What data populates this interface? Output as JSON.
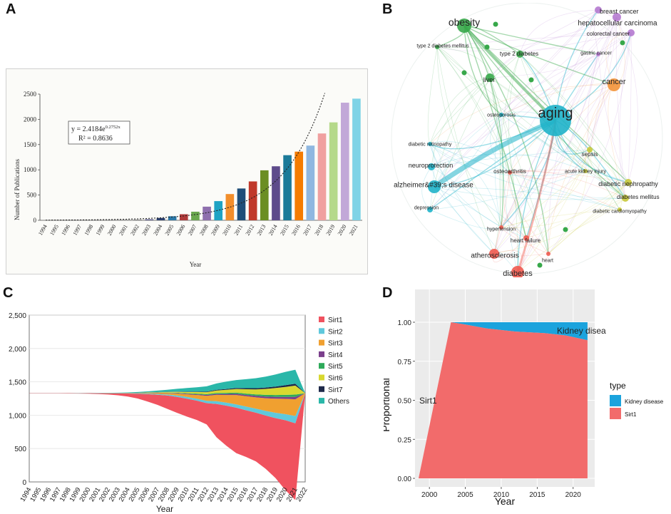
{
  "panels": {
    "a": "A",
    "b": "B",
    "c": "C",
    "d": "D"
  },
  "chart_data": [
    {
      "type": "bar",
      "panel": "A",
      "categories": [
        "1994",
        "1995",
        "1996",
        "1997",
        "1998",
        "1999",
        "2000",
        "2001",
        "2002",
        "2003",
        "2004",
        "2005",
        "2006",
        "2007",
        "2008",
        "2009",
        "2010",
        "2011",
        "2012",
        "2013",
        "2014",
        "2015",
        "2016",
        "2017",
        "2018",
        "2019",
        "2020",
        "2021"
      ],
      "values": [
        2,
        3,
        3,
        4,
        5,
        6,
        8,
        10,
        14,
        20,
        45,
        80,
        120,
        170,
        270,
        380,
        520,
        630,
        770,
        990,
        1070,
        1290,
        1360,
        1480,
        1720,
        1940,
        2330,
        2410
      ],
      "colors": [
        "#888888",
        "#888888",
        "#888888",
        "#888888",
        "#888888",
        "#888888",
        "#888888",
        "#888888",
        "#888888",
        "#5a5a8a",
        "#2a3f6e",
        "#2b78a8",
        "#b03a3a",
        "#6aa84f",
        "#8e6fae",
        "#1fa3c4",
        "#f28e2b",
        "#1f4e79",
        "#c0392b",
        "#6b8e23",
        "#5e4b8b",
        "#1b7a99",
        "#f57c00",
        "#8fb7e0",
        "#f0a0a0",
        "#b5d98a",
        "#c2a8d8",
        "#7fd3e6"
      ],
      "ylabel": "Number of Publications",
      "xlabel": "Year",
      "ylim": [
        0,
        2500
      ],
      "yticks": [
        "0",
        "500",
        "1000",
        "1500",
        "2000",
        "2500"
      ],
      "equation": "y = 2.4184e",
      "exponent": "0.2752x",
      "r2": "R² = 0.8636"
    },
    {
      "type": "network",
      "panel": "B",
      "nodes": [
        {
          "label": "aging",
          "cluster": "blue"
        },
        {
          "label": "obesity",
          "cluster": "green"
        },
        {
          "label": "cancer",
          "cluster": "orange"
        },
        {
          "label": "breast cancer",
          "cluster": "purple"
        },
        {
          "label": "hepatocellular carcinoma",
          "cluster": "purple"
        },
        {
          "label": "colorectal cancer",
          "cluster": "purple"
        },
        {
          "label": "gastric cancer",
          "cluster": "purple"
        },
        {
          "label": "type 2 diabetes mellitus",
          "cluster": "green"
        },
        {
          "label": "type 2 diabetes",
          "cluster": "green"
        },
        {
          "label": "liver",
          "cluster": "green"
        },
        {
          "label": "osteoporosis",
          "cluster": "blue"
        },
        {
          "label": "diabetic retinopathy",
          "cluster": "blue"
        },
        {
          "label": "neuroprotection",
          "cluster": "blue"
        },
        {
          "label": "alzheimer&#39;s disease",
          "cluster": "blue"
        },
        {
          "label": "depression",
          "cluster": "blue"
        },
        {
          "label": "osteoarthritis",
          "cluster": "red"
        },
        {
          "label": "sepsis",
          "cluster": "yellow"
        },
        {
          "label": "acute kidney injury",
          "cluster": "yellow"
        },
        {
          "label": "diabetic nephropathy",
          "cluster": "yellow"
        },
        {
          "label": "diabetes mellitus",
          "cluster": "yellow"
        },
        {
          "label": "diabetic cardiomyopathy",
          "cluster": "yellow"
        },
        {
          "label": "hypertension",
          "cluster": "red"
        },
        {
          "label": "heart failure",
          "cluster": "red"
        },
        {
          "label": "heart",
          "cluster": "red"
        },
        {
          "label": "atherosclerosis",
          "cluster": "red"
        },
        {
          "label": "diabetes",
          "cluster": "red"
        }
      ]
    },
    {
      "type": "area",
      "panel": "C",
      "xlabel": "Year",
      "x": [
        "1994",
        "1995",
        "1996",
        "1997",
        "1998",
        "1999",
        "2000",
        "2001",
        "2002",
        "2003",
        "2004",
        "2005",
        "2006",
        "2007",
        "2008",
        "2009",
        "2010",
        "2011",
        "2012",
        "2013",
        "2014",
        "2015",
        "2016",
        "2017",
        "2018",
        "2019",
        "2020",
        "2021",
        "2022"
      ],
      "ylim": [
        0,
        2500
      ],
      "yticks": [
        "0",
        "500",
        "1,000",
        "1,500",
        "2,000",
        "2,500"
      ],
      "legend": [
        "Sirt1",
        "Sirt2",
        "Sirt3",
        "Sirt4",
        "Sirt5",
        "Sirt6",
        "Sirt7",
        "Others"
      ],
      "colors": [
        "#f0525f",
        "#5fc8dc",
        "#f0a030",
        "#7b3f8c",
        "#2eaa5a",
        "#d8d830",
        "#1f2a4a",
        "#2ab7a9"
      ],
      "series": [
        {
          "name": "Sirt1",
          "values": [
            4,
            4,
            4,
            4,
            5,
            6,
            8,
            12,
            18,
            28,
            45,
            70,
            110,
            150,
            200,
            240,
            270,
            290,
            320,
            500,
            600,
            680,
            700,
            730,
            800,
            900,
            1050,
            1150,
            0
          ]
        },
        {
          "name": "Sirt2",
          "values": [
            0,
            0,
            0,
            0,
            0,
            0,
            0,
            1,
            1,
            2,
            3,
            5,
            8,
            12,
            15,
            20,
            25,
            30,
            35,
            40,
            45,
            50,
            55,
            60,
            70,
            80,
            90,
            110,
            0
          ]
        },
        {
          "name": "Sirt3",
          "values": [
            0,
            0,
            0,
            0,
            0,
            0,
            0,
            0,
            1,
            1,
            2,
            4,
            8,
            14,
            20,
            30,
            40,
            55,
            75,
            95,
            115,
            140,
            155,
            170,
            190,
            210,
            230,
            250,
            0
          ]
        },
        {
          "name": "Sirt4",
          "values": [
            0,
            0,
            0,
            0,
            0,
            0,
            0,
            0,
            0,
            1,
            1,
            2,
            3,
            4,
            5,
            6,
            8,
            10,
            12,
            14,
            16,
            18,
            20,
            22,
            25,
            28,
            30,
            35,
            0
          ]
        },
        {
          "name": "Sirt5",
          "values": [
            0,
            0,
            0,
            0,
            0,
            0,
            0,
            0,
            0,
            0,
            1,
            1,
            2,
            3,
            4,
            6,
            8,
            10,
            12,
            14,
            16,
            18,
            20,
            22,
            25,
            28,
            30,
            35,
            0
          ]
        },
        {
          "name": "Sirt6",
          "values": [
            0,
            0,
            0,
            0,
            0,
            0,
            0,
            0,
            0,
            1,
            1,
            2,
            4,
            6,
            10,
            14,
            18,
            24,
            30,
            38,
            46,
            55,
            65,
            75,
            90,
            105,
            120,
            135,
            0
          ]
        },
        {
          "name": "Sirt7",
          "values": [
            0,
            0,
            0,
            0,
            0,
            0,
            0,
            0,
            0,
            0,
            0,
            1,
            1,
            2,
            3,
            4,
            5,
            6,
            8,
            10,
            12,
            14,
            16,
            18,
            20,
            22,
            25,
            28,
            0
          ]
        },
        {
          "name": "Others",
          "values": [
            1,
            1,
            1,
            1,
            1,
            2,
            2,
            3,
            4,
            6,
            8,
            12,
            16,
            22,
            30,
            40,
            55,
            65,
            80,
            95,
            110,
            120,
            135,
            150,
            165,
            180,
            200,
            210,
            0
          ]
        }
      ]
    },
    {
      "type": "area",
      "panel": "D",
      "ylabel": "Proportional",
      "xlabel": "Year",
      "xticks": [
        "2000",
        "2005",
        "2010",
        "2015",
        "2020"
      ],
      "yticks": [
        "0.00",
        "0.25",
        "0.50",
        "0.75",
        "1.00"
      ],
      "xlim": [
        1998,
        2023
      ],
      "legend_title": "type",
      "legend": [
        "Kidney disease",
        "Sirt1"
      ],
      "colors": [
        "#1ba3dd",
        "#f26b6b"
      ],
      "series": [
        {
          "name": "Sirt1",
          "x": [
            1998.5,
            2003,
            2005,
            2008,
            2012,
            2016,
            2019,
            2022
          ],
          "values": [
            0.0,
            1.0,
            0.985,
            0.96,
            0.94,
            0.93,
            0.915,
            0.885
          ]
        },
        {
          "name": "Kidney disease",
          "x": [
            1998.5,
            2003,
            2005,
            2008,
            2012,
            2016,
            2019,
            2022
          ],
          "values": [
            0.0,
            0.0,
            0.015,
            0.04,
            0.06,
            0.07,
            0.085,
            0.115
          ]
        }
      ],
      "annotations": [
        "Sirt1",
        "Kidney disea"
      ]
    }
  ]
}
